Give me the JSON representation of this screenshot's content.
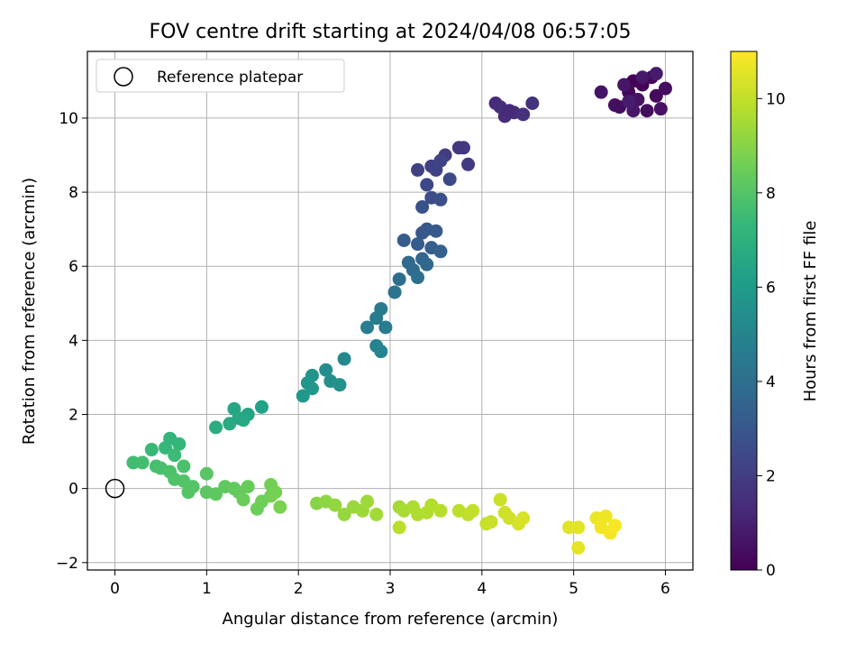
{
  "chart_data": {
    "type": "scatter",
    "title": "FOV centre drift starting at 2024/04/08 06:57:05",
    "xlabel": "Angular distance from reference (arcmin)",
    "ylabel": "Rotation from reference (arcmin)",
    "xlim": [
      -0.3,
      6.3
    ],
    "ylim": [
      -2.2,
      11.8
    ],
    "x_ticks": [
      0,
      1,
      2,
      3,
      4,
      5,
      6
    ],
    "y_ticks": [
      -2,
      0,
      2,
      4,
      6,
      8,
      10
    ],
    "grid": true,
    "legend": {
      "placement": "top-left",
      "entries": [
        "Reference platepar"
      ]
    },
    "reference_point": {
      "x": 0,
      "y": 0
    },
    "colorbar": {
      "label": "Hours from first FF file",
      "range": [
        0,
        11
      ],
      "ticks": [
        0,
        2,
        4,
        6,
        8,
        10
      ],
      "colormap": "viridis"
    },
    "colormap_stops": [
      "#440154",
      "#482878",
      "#3e4989",
      "#31688e",
      "#26828e",
      "#1f9e89",
      "#35b779",
      "#6ece58",
      "#b5de2b",
      "#fde725"
    ],
    "point_color": "hours",
    "series": [
      {
        "name": "drift points",
        "points": [
          {
            "x": 5.65,
            "y": 11.0,
            "hours": 0.0
          },
          {
            "x": 5.75,
            "y": 10.9,
            "hours": 0.1
          },
          {
            "x": 5.85,
            "y": 11.1,
            "hours": 0.15
          },
          {
            "x": 5.6,
            "y": 10.7,
            "hours": 0.2
          },
          {
            "x": 5.9,
            "y": 10.6,
            "hours": 0.25
          },
          {
            "x": 5.5,
            "y": 10.3,
            "hours": 0.3
          },
          {
            "x": 5.8,
            "y": 10.2,
            "hours": 0.35
          },
          {
            "x": 6.0,
            "y": 10.8,
            "hours": 0.4
          },
          {
            "x": 5.45,
            "y": 10.35,
            "hours": 0.45
          },
          {
            "x": 5.95,
            "y": 10.25,
            "hours": 0.5
          },
          {
            "x": 5.3,
            "y": 10.7,
            "hours": 0.6
          },
          {
            "x": 5.7,
            "y": 10.5,
            "hours": 0.55
          },
          {
            "x": 5.55,
            "y": 10.9,
            "hours": 0.65
          },
          {
            "x": 5.65,
            "y": 10.2,
            "hours": 0.7
          },
          {
            "x": 5.75,
            "y": 11.1,
            "hours": 0.75
          },
          {
            "x": 5.9,
            "y": 11.2,
            "hours": 0.8
          },
          {
            "x": 5.6,
            "y": 10.45,
            "hours": 0.85
          },
          {
            "x": 4.15,
            "y": 10.4,
            "hours": 1.3
          },
          {
            "x": 4.25,
            "y": 10.05,
            "hours": 1.4
          },
          {
            "x": 4.35,
            "y": 10.15,
            "hours": 1.5
          },
          {
            "x": 4.45,
            "y": 10.1,
            "hours": 1.55
          },
          {
            "x": 4.55,
            "y": 10.4,
            "hours": 1.6
          },
          {
            "x": 4.2,
            "y": 10.3,
            "hours": 1.45
          },
          {
            "x": 4.3,
            "y": 10.2,
            "hours": 1.35
          },
          {
            "x": 3.75,
            "y": 9.2,
            "hours": 1.8
          },
          {
            "x": 3.85,
            "y": 8.75,
            "hours": 1.9
          },
          {
            "x": 3.6,
            "y": 9.0,
            "hours": 2.0
          },
          {
            "x": 3.45,
            "y": 8.7,
            "hours": 2.1
          },
          {
            "x": 3.3,
            "y": 8.6,
            "hours": 2.15
          },
          {
            "x": 3.5,
            "y": 8.6,
            "hours": 2.2
          },
          {
            "x": 3.55,
            "y": 8.85,
            "hours": 2.25
          },
          {
            "x": 3.4,
            "y": 8.2,
            "hours": 2.4
          },
          {
            "x": 3.65,
            "y": 8.35,
            "hours": 2.45
          },
          {
            "x": 3.45,
            "y": 7.85,
            "hours": 2.6
          },
          {
            "x": 3.55,
            "y": 7.8,
            "hours": 2.7
          },
          {
            "x": 3.35,
            "y": 7.6,
            "hours": 2.8
          },
          {
            "x": 3.8,
            "y": 9.2,
            "hours": 1.85
          },
          {
            "x": 3.4,
            "y": 7.0,
            "hours": 3.0
          },
          {
            "x": 3.5,
            "y": 6.95,
            "hours": 3.1
          },
          {
            "x": 3.3,
            "y": 6.6,
            "hours": 3.2
          },
          {
            "x": 3.45,
            "y": 6.5,
            "hours": 3.3
          },
          {
            "x": 3.15,
            "y": 6.7,
            "hours": 3.15
          },
          {
            "x": 3.55,
            "y": 6.4,
            "hours": 3.4
          },
          {
            "x": 3.35,
            "y": 6.2,
            "hours": 3.6
          },
          {
            "x": 3.4,
            "y": 6.05,
            "hours": 3.7
          },
          {
            "x": 3.25,
            "y": 5.9,
            "hours": 3.8
          },
          {
            "x": 3.1,
            "y": 5.65,
            "hours": 3.9
          },
          {
            "x": 3.3,
            "y": 5.7,
            "hours": 4.0
          },
          {
            "x": 3.2,
            "y": 6.1,
            "hours": 3.75
          },
          {
            "x": 3.05,
            "y": 5.3,
            "hours": 4.2
          },
          {
            "x": 3.35,
            "y": 6.9,
            "hours": 3.05
          },
          {
            "x": 2.9,
            "y": 4.85,
            "hours": 4.5
          },
          {
            "x": 2.85,
            "y": 4.6,
            "hours": 4.6
          },
          {
            "x": 2.75,
            "y": 4.35,
            "hours": 4.7
          },
          {
            "x": 2.95,
            "y": 4.35,
            "hours": 4.65
          },
          {
            "x": 2.85,
            "y": 3.85,
            "hours": 4.9
          },
          {
            "x": 2.9,
            "y": 3.7,
            "hours": 5.0
          },
          {
            "x": 2.5,
            "y": 3.5,
            "hours": 5.2
          },
          {
            "x": 2.3,
            "y": 3.2,
            "hours": 5.4
          },
          {
            "x": 2.35,
            "y": 2.9,
            "hours": 5.5
          },
          {
            "x": 2.45,
            "y": 2.8,
            "hours": 5.6
          },
          {
            "x": 2.15,
            "y": 3.05,
            "hours": 5.7
          },
          {
            "x": 2.15,
            "y": 2.7,
            "hours": 5.8
          },
          {
            "x": 2.05,
            "y": 2.5,
            "hours": 5.9
          },
          {
            "x": 2.1,
            "y": 2.85,
            "hours": 5.75
          },
          {
            "x": 1.6,
            "y": 2.2,
            "hours": 6.3
          },
          {
            "x": 1.45,
            "y": 2.0,
            "hours": 6.4
          },
          {
            "x": 1.3,
            "y": 2.15,
            "hours": 6.5
          },
          {
            "x": 1.4,
            "y": 1.85,
            "hours": 6.6
          },
          {
            "x": 1.25,
            "y": 1.75,
            "hours": 6.7
          },
          {
            "x": 1.1,
            "y": 1.65,
            "hours": 6.8
          },
          {
            "x": 1.35,
            "y": 1.9,
            "hours": 6.55
          },
          {
            "x": 0.6,
            "y": 1.35,
            "hours": 7.2
          },
          {
            "x": 0.7,
            "y": 1.2,
            "hours": 7.3
          },
          {
            "x": 0.55,
            "y": 1.1,
            "hours": 7.35
          },
          {
            "x": 0.4,
            "y": 1.05,
            "hours": 7.4
          },
          {
            "x": 0.65,
            "y": 0.9,
            "hours": 7.5
          },
          {
            "x": 0.2,
            "y": 0.7,
            "hours": 7.6
          },
          {
            "x": 0.3,
            "y": 0.7,
            "hours": 7.65
          },
          {
            "x": 0.45,
            "y": 0.6,
            "hours": 7.7
          },
          {
            "x": 0.5,
            "y": 0.55,
            "hours": 7.75
          },
          {
            "x": 0.75,
            "y": 0.6,
            "hours": 7.8
          },
          {
            "x": 0.6,
            "y": 0.45,
            "hours": 7.85
          },
          {
            "x": 0.65,
            "y": 0.25,
            "hours": 7.9
          },
          {
            "x": 0.75,
            "y": 0.2,
            "hours": 7.95
          },
          {
            "x": 0.85,
            "y": 0.05,
            "hours": 8.0
          },
          {
            "x": 0.8,
            "y": -0.1,
            "hours": 8.05
          },
          {
            "x": 1.0,
            "y": 0.4,
            "hours": 8.1
          },
          {
            "x": 1.0,
            "y": -0.1,
            "hours": 8.15
          },
          {
            "x": 1.1,
            "y": -0.15,
            "hours": 8.2
          },
          {
            "x": 1.2,
            "y": 0.05,
            "hours": 8.25
          },
          {
            "x": 1.3,
            "y": 0.0,
            "hours": 8.3
          },
          {
            "x": 1.35,
            "y": -0.1,
            "hours": 8.35
          },
          {
            "x": 1.45,
            "y": 0.05,
            "hours": 8.4
          },
          {
            "x": 1.4,
            "y": -0.3,
            "hours": 8.45
          },
          {
            "x": 1.55,
            "y": -0.55,
            "hours": 8.5
          },
          {
            "x": 1.6,
            "y": -0.35,
            "hours": 8.55
          },
          {
            "x": 1.7,
            "y": 0.1,
            "hours": 8.6
          },
          {
            "x": 1.7,
            "y": -0.2,
            "hours": 8.65
          },
          {
            "x": 1.75,
            "y": -0.1,
            "hours": 8.7
          },
          {
            "x": 1.8,
            "y": -0.5,
            "hours": 8.75
          },
          {
            "x": 2.2,
            "y": -0.4,
            "hours": 9.0
          },
          {
            "x": 2.3,
            "y": -0.35,
            "hours": 9.1
          },
          {
            "x": 2.4,
            "y": -0.45,
            "hours": 9.2
          },
          {
            "x": 2.5,
            "y": -0.7,
            "hours": 9.25
          },
          {
            "x": 2.6,
            "y": -0.5,
            "hours": 9.3
          },
          {
            "x": 2.7,
            "y": -0.6,
            "hours": 9.35
          },
          {
            "x": 2.75,
            "y": -0.35,
            "hours": 9.4
          },
          {
            "x": 2.85,
            "y": -0.7,
            "hours": 9.45
          },
          {
            "x": 3.1,
            "y": -0.5,
            "hours": 9.5
          },
          {
            "x": 3.15,
            "y": -0.6,
            "hours": 9.55
          },
          {
            "x": 3.25,
            "y": -0.5,
            "hours": 9.6
          },
          {
            "x": 3.3,
            "y": -0.7,
            "hours": 9.65
          },
          {
            "x": 3.4,
            "y": -0.65,
            "hours": 9.7
          },
          {
            "x": 3.45,
            "y": -0.45,
            "hours": 9.75
          },
          {
            "x": 3.55,
            "y": -0.6,
            "hours": 9.8
          },
          {
            "x": 3.1,
            "y": -1.05,
            "hours": 9.85
          },
          {
            "x": 3.75,
            "y": -0.6,
            "hours": 9.9
          },
          {
            "x": 3.85,
            "y": -0.7,
            "hours": 9.95
          },
          {
            "x": 3.9,
            "y": -0.6,
            "hours": 10.0
          },
          {
            "x": 4.05,
            "y": -0.95,
            "hours": 10.05
          },
          {
            "x": 4.1,
            "y": -0.9,
            "hours": 10.1
          },
          {
            "x": 4.2,
            "y": -0.3,
            "hours": 10.15
          },
          {
            "x": 4.25,
            "y": -0.65,
            "hours": 10.2
          },
          {
            "x": 4.3,
            "y": -0.8,
            "hours": 10.25
          },
          {
            "x": 4.4,
            "y": -0.95,
            "hours": 10.3
          },
          {
            "x": 4.45,
            "y": -0.8,
            "hours": 10.35
          },
          {
            "x": 4.95,
            "y": -1.05,
            "hours": 10.5
          },
          {
            "x": 5.05,
            "y": -1.05,
            "hours": 10.55
          },
          {
            "x": 5.05,
            "y": -1.6,
            "hours": 10.6
          },
          {
            "x": 5.25,
            "y": -0.8,
            "hours": 10.7
          },
          {
            "x": 5.35,
            "y": -0.75,
            "hours": 10.75
          },
          {
            "x": 5.3,
            "y": -1.05,
            "hours": 10.8
          },
          {
            "x": 5.4,
            "y": -1.2,
            "hours": 10.85
          },
          {
            "x": 5.45,
            "y": -1.0,
            "hours": 10.9
          }
        ]
      }
    ]
  }
}
